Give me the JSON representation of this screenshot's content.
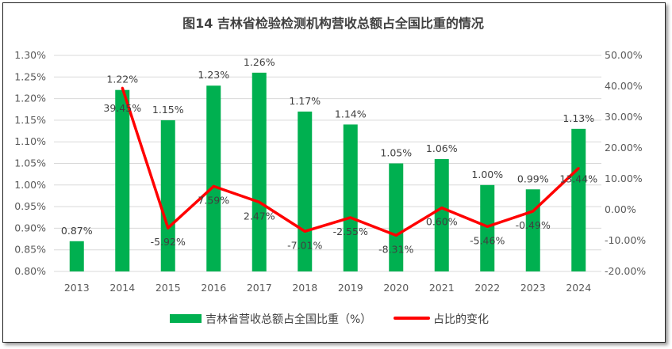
{
  "chart_data": {
    "type": "bar+line",
    "title": "图14  吉林省检验检测机构营收总额占全国比重的情况",
    "categories": [
      "2013",
      "2014",
      "2015",
      "2016",
      "2017",
      "2018",
      "2019",
      "2020",
      "2021",
      "2022",
      "2023",
      "2024"
    ],
    "series": [
      {
        "name": "吉林省营收总额占全国比重（%）",
        "type": "bar",
        "axis": "left",
        "color": "#00B050",
        "values": [
          0.87,
          1.22,
          1.15,
          1.23,
          1.26,
          1.17,
          1.14,
          1.05,
          1.06,
          1.0,
          0.99,
          1.13
        ],
        "labels": [
          "0.87%",
          "1.22%",
          "1.15%",
          "1.23%",
          "1.26%",
          "1.17%",
          "1.14%",
          "1.05%",
          "1.06%",
          "1.00%",
          "0.99%",
          "1.13%"
        ]
      },
      {
        "name": "占比的变化",
        "type": "line",
        "axis": "right",
        "color": "#FF0000",
        "values": [
          null,
          39.45,
          -5.92,
          7.59,
          2.47,
          -7.01,
          -2.55,
          -8.31,
          0.6,
          -5.46,
          -0.49,
          13.44
        ],
        "labels": [
          "",
          "39.45%",
          "-5.92%",
          "7.59%",
          "2.47%",
          "-7.01%",
          "-2.55%",
          "-8.31%",
          "0.60%",
          "-5.46%",
          "-0.49%",
          "13.44%"
        ]
      }
    ],
    "left_axis": {
      "range": [
        0.8,
        1.3
      ],
      "step": 0.05,
      "ticks": [
        "0.80%",
        "0.85%",
        "0.90%",
        "0.95%",
        "1.00%",
        "1.05%",
        "1.10%",
        "1.15%",
        "1.20%",
        "1.25%",
        "1.30%"
      ]
    },
    "right_axis": {
      "range": [
        -20,
        50
      ],
      "step": 10,
      "ticks": [
        "-20.00%",
        "-10.00%",
        "0.00%",
        "10.00%",
        "20.00%",
        "30.00%",
        "40.00%",
        "50.00%"
      ]
    },
    "grid": true,
    "legend": "bottom"
  }
}
